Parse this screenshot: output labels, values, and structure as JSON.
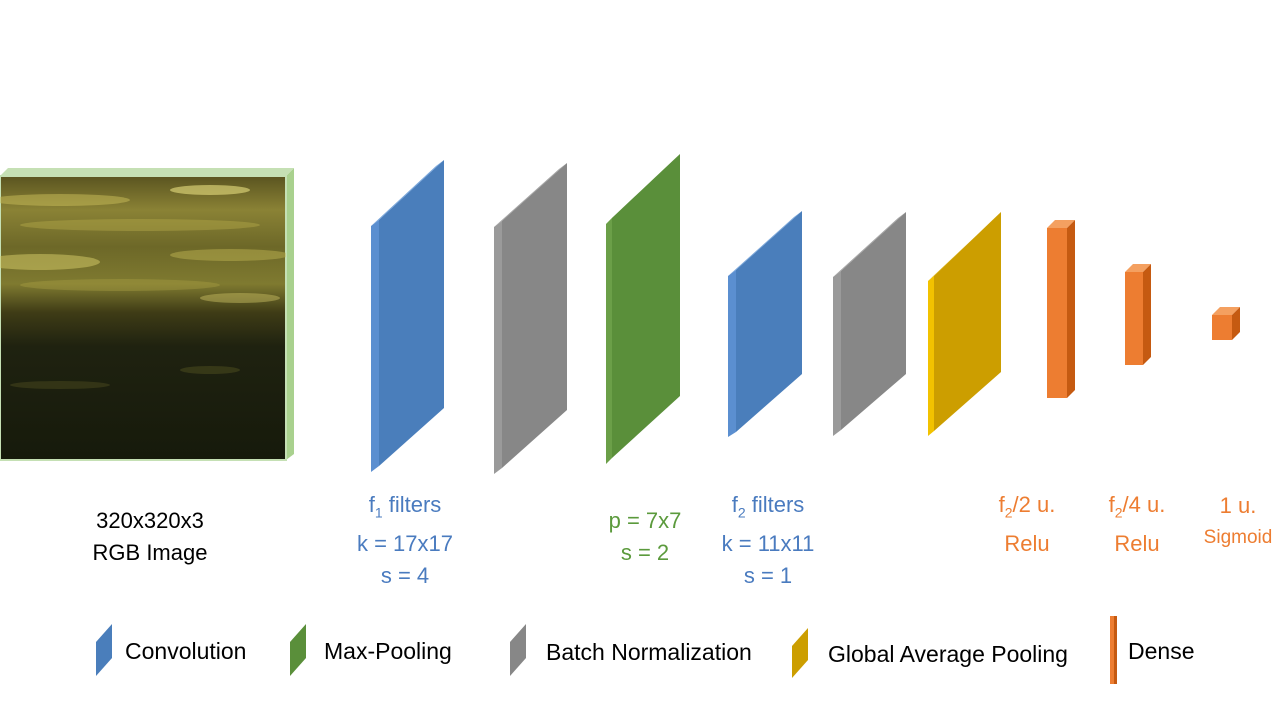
{
  "input": {
    "line1": "320x320x3",
    "line2": "RGB Image"
  },
  "conv1": {
    "filters_sym": "f",
    "filters_sub": "1",
    "filters_text": " filters",
    "kernel": "k = 17x17",
    "stride": "s = 4"
  },
  "pool": {
    "size": "p = 7x7",
    "stride": "s = 2"
  },
  "conv2": {
    "filters_sym": "f",
    "filters_sub": "2",
    "filters_text": " filters",
    "kernel": "k = 11x11",
    "stride": "s = 1"
  },
  "dense1": {
    "sym": "f",
    "sub": "2",
    "text": "/2 u.",
    "activation": "Relu"
  },
  "dense2": {
    "sym": "f",
    "sub": "2",
    "text": "/4 u.",
    "activation": "Relu"
  },
  "dense3": {
    "units": "1 u.",
    "activation": "Sigmoid"
  },
  "legend": {
    "convolution": "Convolution",
    "max_pooling": "Max-Pooling",
    "batch_norm": "Batch Normalization",
    "gap": "Global Average Pooling",
    "dense": "Dense"
  },
  "colors": {
    "convolution": "#4a7ebb",
    "max_pooling": "#5a8f3a",
    "batch_norm": "#878787",
    "gap": "#cc9e00",
    "dense": "#ed7d31",
    "input_frame": "#c5e0b4"
  }
}
